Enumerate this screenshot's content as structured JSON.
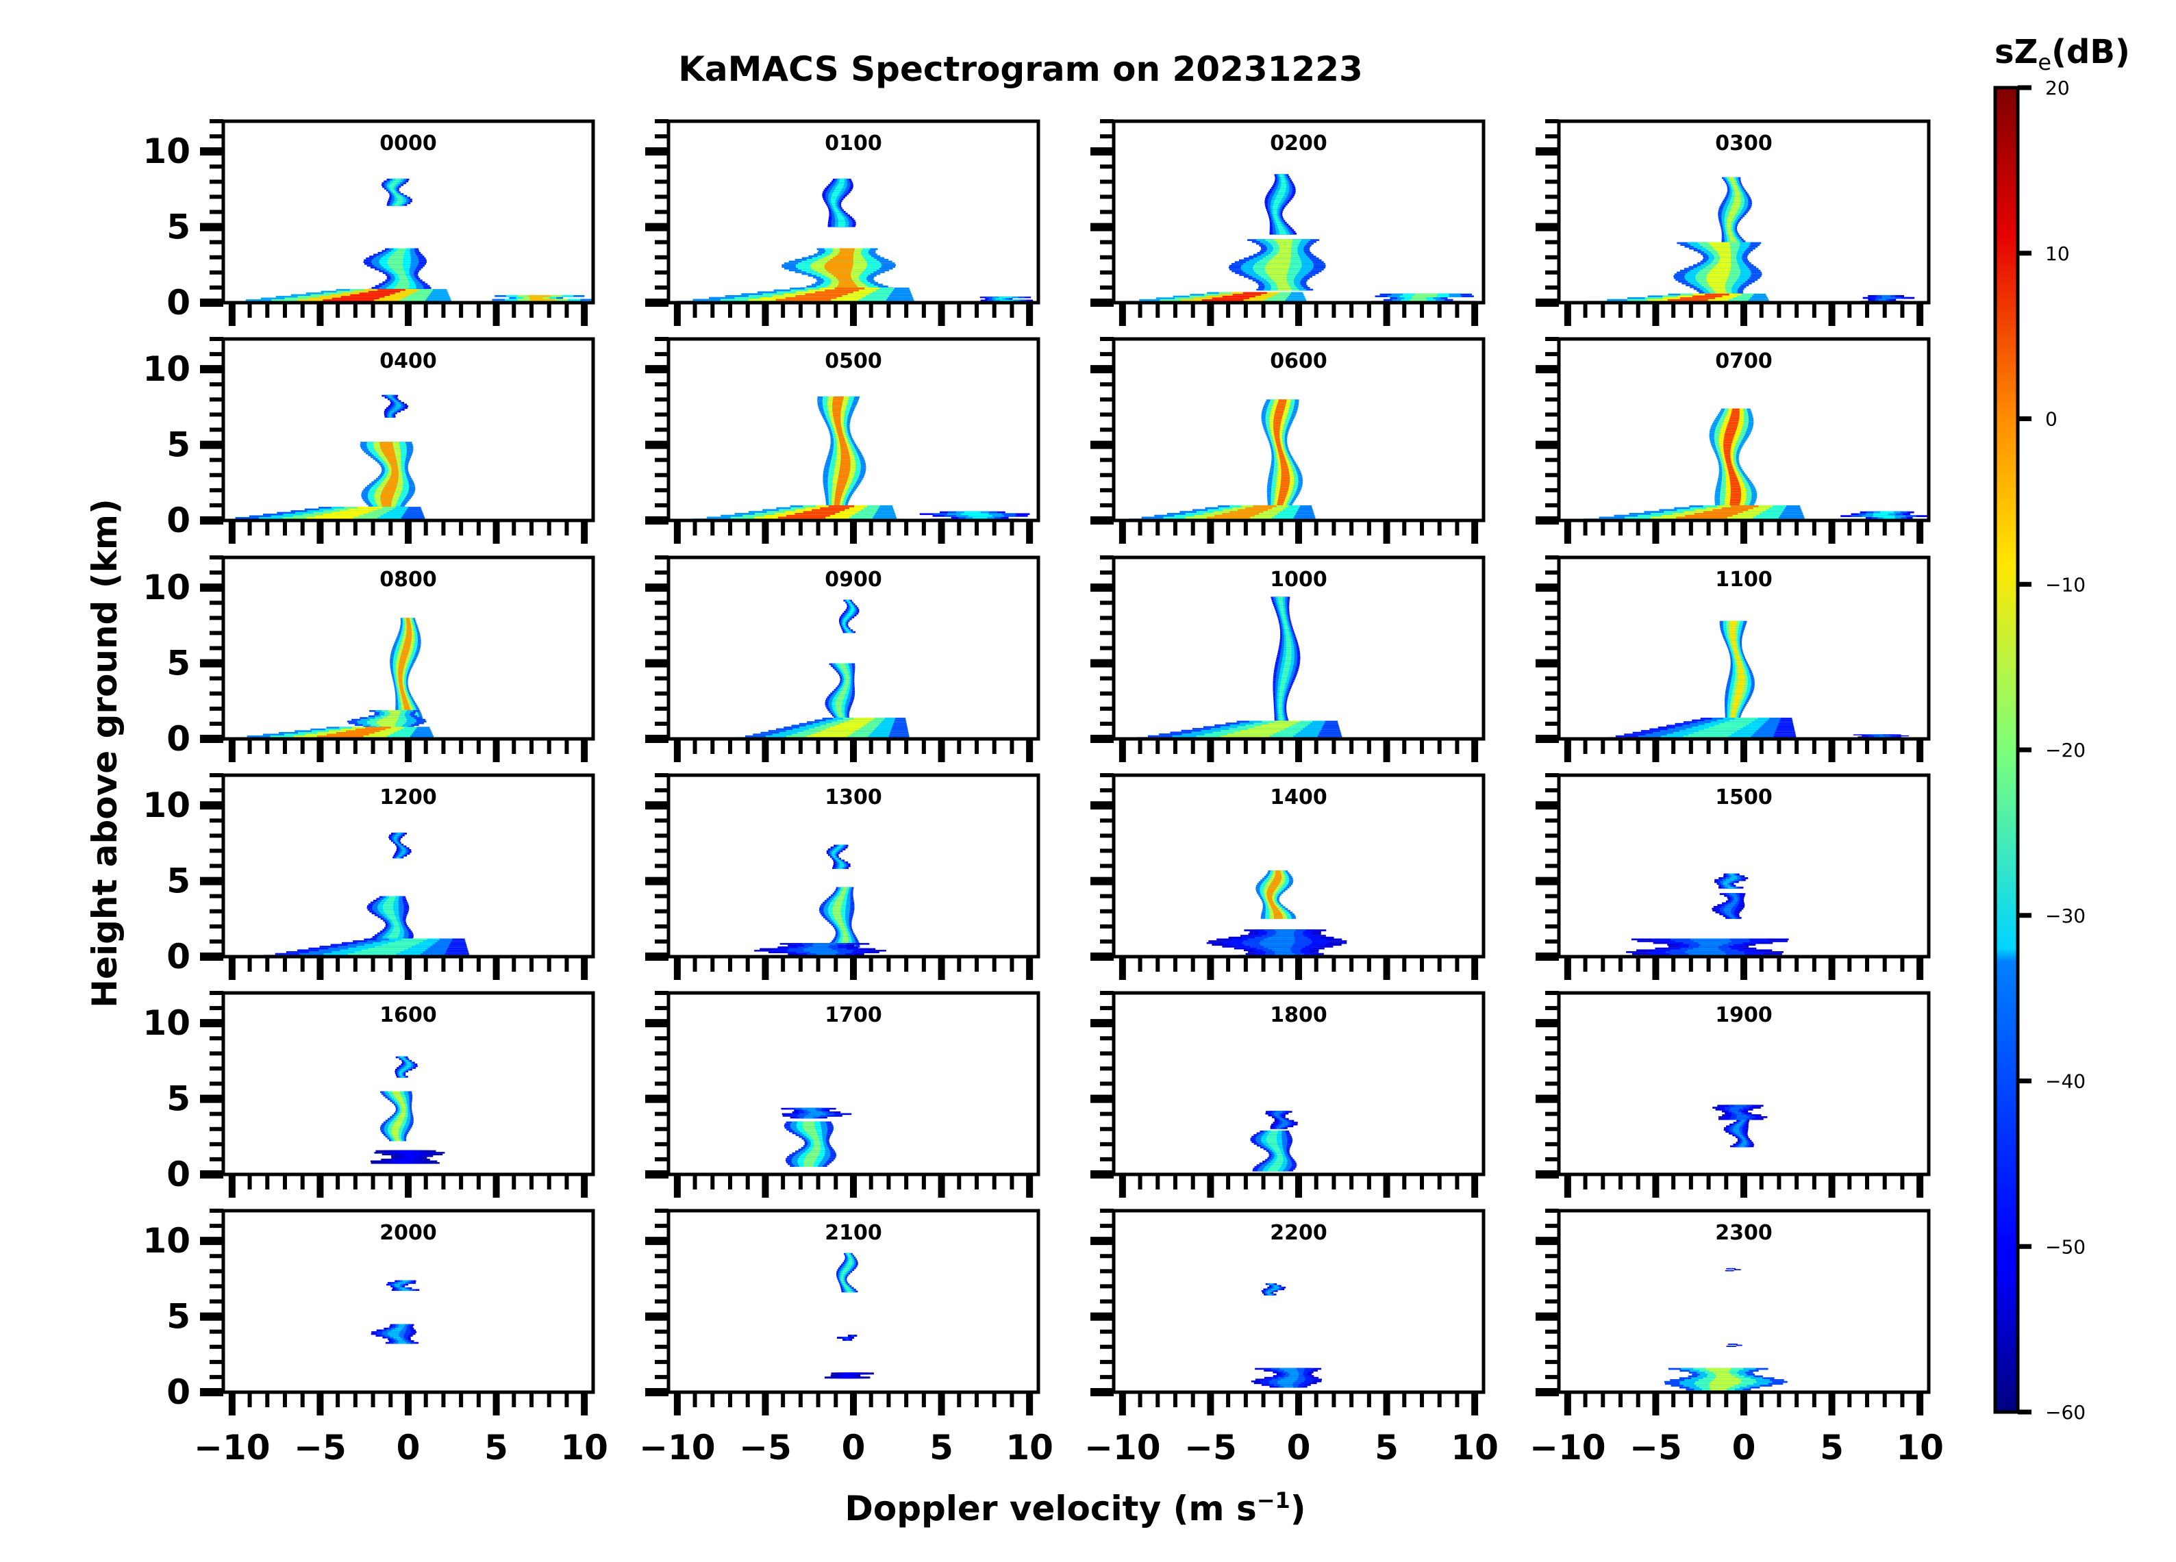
{
  "chart_data": {
    "type": "heatmap",
    "title": "KaMACS Spectrogram on 20231223",
    "xlabel": "Doppler velocity (m s",
    "xlabel_superscript": "−1",
    "xlabel_suffix": ")",
    "ylabel": "Height above ground (km)",
    "xlim": [
      -10.5,
      10.5
    ],
    "ylim": [
      0,
      12
    ],
    "xticks": [
      -10,
      -5,
      0,
      5,
      10
    ],
    "xtick_labels": [
      "−10",
      "−5",
      "0",
      "5",
      "10"
    ],
    "xminor_step": 1,
    "yticks": [
      0,
      5,
      10
    ],
    "ytick_labels": [
      "0",
      "5",
      "10"
    ],
    "yminor_step": 1,
    "grid": false,
    "layout": {
      "rows": 6,
      "cols": 4
    },
    "colorbar": {
      "label_main": "sZ",
      "label_sub": "e",
      "label_suffix": "(dB)",
      "colormap": "jet",
      "vmin": -60,
      "vmax": 20,
      "ticks": [
        20,
        10,
        0,
        -10,
        -20,
        -30,
        -40,
        -50,
        -60
      ],
      "tick_labels": [
        "20",
        "10",
        "0",
        "−10",
        "−20",
        "−30",
        "−40",
        "−50",
        "−60"
      ],
      "placement": "right"
    },
    "panels": [
      {
        "label": "0000",
        "features": [
          {
            "h": [
              6.4,
              8.2
            ],
            "v": -0.7,
            "w": 1.4,
            "peak": -25
          },
          {
            "h": [
              0.8,
              3.6
            ],
            "v": -0.5,
            "w": 3.6,
            "peak": -22
          },
          {
            "h": [
              0.0,
              0.9
            ],
            "v": -4.0,
            "w": 13.0,
            "peak": 8,
            "tilt": true
          },
          {
            "h": [
              0.0,
              0.5
            ],
            "v": 7.5,
            "w": 6.0,
            "peak": -5
          }
        ]
      },
      {
        "label": "0100",
        "features": [
          {
            "h": [
              5.0,
              8.2
            ],
            "v": -0.9,
            "w": 1.6,
            "peak": -28
          },
          {
            "h": [
              0.9,
              3.6
            ],
            "v": -0.6,
            "w": 6.5,
            "peak": -2
          },
          {
            "h": [
              0.0,
              1.0
            ],
            "v": -3.5,
            "w": 14.0,
            "peak": 2,
            "tilt": true
          },
          {
            "h": [
              0.1,
              0.4
            ],
            "v": 8.5,
            "w": 3.0,
            "peak": -30
          }
        ]
      },
      {
        "label": "0200",
        "features": [
          {
            "h": [
              4.5,
              8.5
            ],
            "v": -1.1,
            "w": 1.6,
            "peak": -27
          },
          {
            "h": [
              0.8,
              4.2
            ],
            "v": -1.0,
            "w": 5.5,
            "peak": -15
          },
          {
            "h": [
              0.0,
              0.7
            ],
            "v": -5.0,
            "w": 11.0,
            "peak": 8,
            "tilt": true
          },
          {
            "h": [
              0.0,
              0.6
            ],
            "v": 7.0,
            "w": 6.0,
            "peak": -20
          }
        ]
      },
      {
        "label": "0300",
        "features": [
          {
            "h": [
              4.0,
              8.3
            ],
            "v": -0.6,
            "w": 1.8,
            "peak": -15
          },
          {
            "h": [
              0.6,
              4.0
            ],
            "v": -1.3,
            "w": 5.0,
            "peak": -12
          },
          {
            "h": [
              0.0,
              0.6
            ],
            "v": -4.0,
            "w": 11.0,
            "peak": 5,
            "tilt": true
          },
          {
            "h": [
              0.0,
              0.5
            ],
            "v": 8.0,
            "w": 3.0,
            "peak": -40
          }
        ]
      },
      {
        "label": "0400",
        "features": [
          {
            "h": [
              6.8,
              8.3
            ],
            "v": -0.8,
            "w": 1.2,
            "peak": -35
          },
          {
            "h": [
              0.8,
              5.2
            ],
            "v": -1.0,
            "w": 3.0,
            "peak": -2
          },
          {
            "h": [
              0.0,
              0.9
            ],
            "v": -5.0,
            "w": 12.0,
            "peak": -10,
            "tilt": true
          }
        ]
      },
      {
        "label": "0500",
        "features": [
          {
            "h": [
              1.0,
              8.2
            ],
            "v": -0.7,
            "w": 2.4,
            "peak": 0
          },
          {
            "h": [
              0.0,
              1.0
            ],
            "v": -3.5,
            "w": 12.0,
            "peak": 5,
            "tilt": true
          },
          {
            "h": [
              0.0,
              0.6
            ],
            "v": 7.0,
            "w": 6.5,
            "peak": -30
          }
        ]
      },
      {
        "label": "0600",
        "features": [
          {
            "h": [
              1.0,
              8.0
            ],
            "v": -1.0,
            "w": 2.0,
            "peak": 2
          },
          {
            "h": [
              0.0,
              1.0
            ],
            "v": -4.5,
            "w": 11.0,
            "peak": -2,
            "tilt": true
          }
        ]
      },
      {
        "label": "0700",
        "features": [
          {
            "h": [
              1.0,
              7.4
            ],
            "v": -0.7,
            "w": 2.4,
            "peak": 5
          },
          {
            "h": [
              0.0,
              1.0
            ],
            "v": -3.0,
            "w": 13.0,
            "peak": 0,
            "tilt": true
          },
          {
            "h": [
              0.1,
              0.6
            ],
            "v": 8.0,
            "w": 5.0,
            "peak": -30
          }
        ]
      },
      {
        "label": "0800",
        "features": [
          {
            "h": [
              1.2,
              8.0
            ],
            "v": -0.2,
            "w": 1.6,
            "peak": -2
          },
          {
            "h": [
              0.4,
              1.9
            ],
            "v": -1.0,
            "w": 4.5,
            "peak": -15
          },
          {
            "h": [
              0.0,
              0.8
            ],
            "v": -4.5,
            "w": 12.0,
            "peak": 0,
            "tilt": true
          }
        ]
      },
      {
        "label": "0900",
        "features": [
          {
            "h": [
              7.0,
              9.2
            ],
            "v": -0.3,
            "w": 0.9,
            "peak": -30
          },
          {
            "h": [
              1.0,
              5.0
            ],
            "v": -0.6,
            "w": 1.6,
            "peak": -20
          },
          {
            "h": [
              0.0,
              1.4
            ],
            "v": -1.8,
            "w": 10.0,
            "peak": -12,
            "tilt": true
          }
        ]
      },
      {
        "label": "1000",
        "features": [
          {
            "h": [
              1.0,
              9.4
            ],
            "v": -0.8,
            "w": 1.4,
            "peak": -25
          },
          {
            "h": [
              0.0,
              1.2
            ],
            "v": -3.5,
            "w": 12.0,
            "peak": -15,
            "tilt": true
          }
        ]
      },
      {
        "label": "1100",
        "features": [
          {
            "h": [
              1.0,
              7.8
            ],
            "v": -0.4,
            "w": 1.6,
            "peak": -8
          },
          {
            "h": [
              0.0,
              1.4
            ],
            "v": -2.5,
            "w": 11.0,
            "peak": -25,
            "tilt": true
          },
          {
            "h": [
              0.1,
              0.3
            ],
            "v": 7.8,
            "w": 3.5,
            "peak": -40
          }
        ]
      },
      {
        "label": "1200",
        "features": [
          {
            "h": [
              6.5,
              8.2
            ],
            "v": -0.5,
            "w": 0.9,
            "peak": -35
          },
          {
            "h": [
              1.0,
              4.0
            ],
            "v": -0.9,
            "w": 2.4,
            "peak": -25
          },
          {
            "h": [
              0.0,
              1.2
            ],
            "v": -2.5,
            "w": 12.0,
            "peak": -25,
            "tilt": true
          }
        ]
      },
      {
        "label": "1300",
        "features": [
          {
            "h": [
              5.8,
              7.4
            ],
            "v": -0.9,
            "w": 1.0,
            "peak": -32
          },
          {
            "h": [
              0.6,
              4.6
            ],
            "v": -0.7,
            "w": 2.0,
            "peak": -18
          },
          {
            "h": [
              0.0,
              0.9
            ],
            "v": -1.8,
            "w": 7.5,
            "peak": -40
          }
        ]
      },
      {
        "label": "1400",
        "features": [
          {
            "h": [
              2.5,
              5.7
            ],
            "v": -1.4,
            "w": 2.0,
            "peak": -2
          },
          {
            "h": [
              0.0,
              1.8
            ],
            "v": -1.0,
            "w": 8.0,
            "peak": -40
          }
        ]
      },
      {
        "label": "1500",
        "features": [
          {
            "h": [
              4.5,
              5.5
            ],
            "v": -0.8,
            "w": 1.8,
            "peak": -35
          },
          {
            "h": [
              2.5,
              4.2
            ],
            "v": -0.7,
            "w": 1.8,
            "peak": -40
          },
          {
            "h": [
              0.0,
              1.2
            ],
            "v": -2.0,
            "w": 9.0,
            "peak": -40
          }
        ]
      },
      {
        "label": "1600",
        "features": [
          {
            "h": [
              6.4,
              7.8
            ],
            "v": -0.2,
            "w": 1.1,
            "peak": -32
          },
          {
            "h": [
              2.2,
              5.5
            ],
            "v": -0.5,
            "w": 1.8,
            "peak": -15
          },
          {
            "h": [
              0.7,
              1.6
            ],
            "v": 0.0,
            "w": 4.0,
            "peak": -50
          }
        ]
      },
      {
        "label": "1700",
        "features": [
          {
            "h": [
              3.7,
              4.4
            ],
            "v": -2.3,
            "w": 4.0,
            "peak": -38
          },
          {
            "h": [
              0.5,
              3.5
            ],
            "v": -2.3,
            "w": 2.8,
            "peak": -20
          }
        ]
      },
      {
        "label": "1800",
        "features": [
          {
            "h": [
              3.0,
              4.2
            ],
            "v": -1.0,
            "w": 1.5,
            "peak": -40
          },
          {
            "h": [
              0.2,
              2.9
            ],
            "v": -1.3,
            "w": 2.4,
            "peak": -25
          }
        ]
      },
      {
        "label": "1900",
        "features": [
          {
            "h": [
              3.6,
              4.6
            ],
            "v": -0.3,
            "w": 2.8,
            "peak": -42
          },
          {
            "h": [
              1.8,
              3.6
            ],
            "v": -0.2,
            "w": 1.4,
            "peak": -38
          }
        ]
      },
      {
        "label": "2000",
        "features": [
          {
            "h": [
              6.7,
              7.4
            ],
            "v": -0.4,
            "w": 1.6,
            "peak": -35
          },
          {
            "h": [
              3.2,
              4.5
            ],
            "v": -0.6,
            "w": 2.6,
            "peak": -35
          }
        ]
      },
      {
        "label": "2100",
        "features": [
          {
            "h": [
              6.6,
              9.2
            ],
            "v": -0.4,
            "w": 1.0,
            "peak": -25
          },
          {
            "h": [
              3.4,
              3.8
            ],
            "v": -0.3,
            "w": 1.0,
            "peak": -45
          },
          {
            "h": [
              0.9,
              1.3
            ],
            "v": -0.3,
            "w": 2.8,
            "peak": -50
          }
        ]
      },
      {
        "label": "2200",
        "features": [
          {
            "h": [
              6.4,
              7.2
            ],
            "v": -1.5,
            "w": 1.2,
            "peak": -35
          },
          {
            "h": [
              0.3,
              1.6
            ],
            "v": -0.5,
            "w": 4.0,
            "peak": -38
          }
        ]
      },
      {
        "label": "2300",
        "features": [
          {
            "h": [
              0.0,
              1.6
            ],
            "v": -1.2,
            "w": 7.0,
            "peak": -15
          },
          {
            "h": [
              3.0,
              3.2
            ],
            "v": -0.5,
            "w": 0.6,
            "peak": -45
          },
          {
            "h": [
              8.0,
              8.2
            ],
            "v": -0.6,
            "w": 0.6,
            "peak": -45
          }
        ]
      }
    ]
  }
}
